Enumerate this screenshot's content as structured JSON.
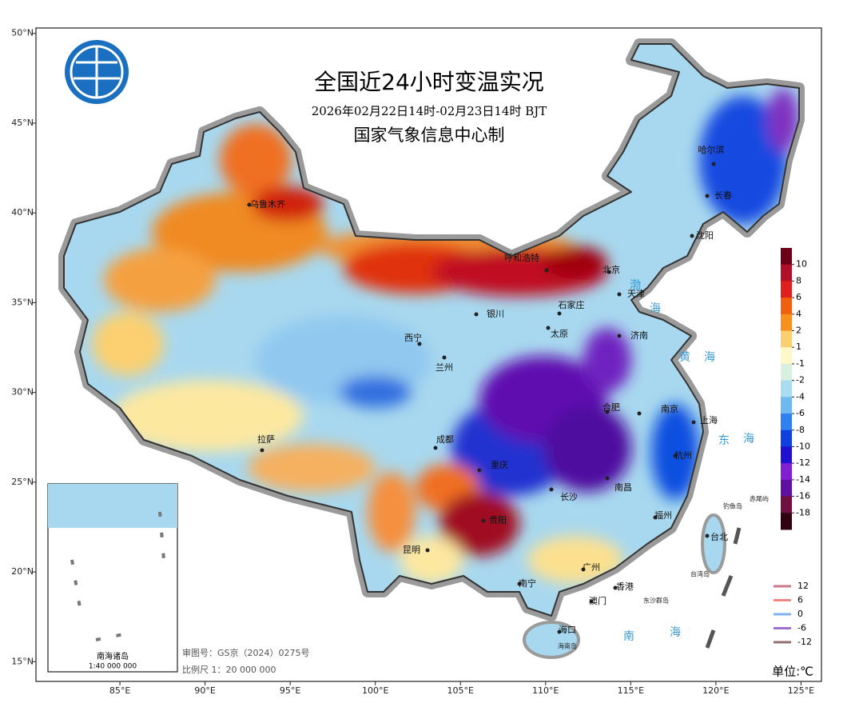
{
  "header": {
    "title": "全国近24小时变温实况",
    "subtitle": "2026年02月22日14时-02月23日14时 BJT",
    "producer": "国家气象信息中心制"
  },
  "axes": {
    "lonlim": [
      80.07,
      126.2
    ],
    "latlim": [
      13.9,
      50.3
    ],
    "lon_ticks": [
      {
        "value": 85,
        "label": "85°E"
      },
      {
        "value": 90,
        "label": "90°E"
      },
      {
        "value": 95,
        "label": "95°E"
      },
      {
        "value": 100,
        "label": "100°E"
      },
      {
        "value": 105,
        "label": "105°E"
      },
      {
        "value": 110,
        "label": "110°E"
      },
      {
        "value": 115,
        "label": "115°E"
      },
      {
        "value": 120,
        "label": "120°E"
      },
      {
        "value": 125,
        "label": "125°E"
      }
    ],
    "lat_ticks": [
      {
        "value": 50,
        "label": "50°N"
      },
      {
        "value": 45,
        "label": "45°N"
      },
      {
        "value": 40,
        "label": "40°N"
      },
      {
        "value": 35,
        "label": "35°N"
      },
      {
        "value": 30,
        "label": "30°N"
      },
      {
        "value": 25,
        "label": "25°N"
      },
      {
        "value": 20,
        "label": "20°N"
      },
      {
        "value": 15,
        "label": "15°N"
      }
    ]
  },
  "legend": {
    "levels": [
      10,
      8,
      6,
      4,
      2,
      1,
      -1,
      -2,
      -4,
      -6,
      -8,
      -10,
      -12,
      -14,
      -16,
      -18
    ],
    "colors": [
      "#6b0018",
      "#b0102a",
      "#e0201e",
      "#f06010",
      "#f89020",
      "#fcd070",
      "#fff8c8",
      "#d8f0e0",
      "#a8dcef",
      "#70b8f0",
      "#3080f0",
      "#1040e0",
      "#2010d0",
      "#8020d0",
      "#6010a0",
      "#701040",
      "#300010"
    ]
  },
  "contour_legend": {
    "values": [
      12,
      6,
      0,
      -6,
      -12
    ],
    "colors": [
      "#c8788a",
      "#f08880",
      "#80b0f0",
      "#a070d0",
      "#907070"
    ]
  },
  "cities": [
    "乌鲁木齐",
    "呼和浩特",
    "北京",
    "天津",
    "石家庄",
    "银川",
    "太原",
    "济南",
    "西宁",
    "兰州",
    "哈尔滨",
    "长春",
    "沈阳",
    "合肥",
    "南京",
    "上海",
    "杭州",
    "成都",
    "重庆",
    "长沙",
    "南昌",
    "福州",
    "台北",
    "拉萨",
    "贵阳",
    "昆明",
    "南宁",
    "广州",
    "香港",
    "澳门",
    "海口"
  ],
  "seas": [
    "渤",
    "海",
    "黄",
    "海",
    "东",
    "海",
    "南",
    "海"
  ],
  "islands": [
    "钓鱼岛",
    "赤尾屿",
    "台湾岛",
    "东沙群岛",
    "海南岛"
  ],
  "inset": {
    "title": "南海诸岛",
    "scale": "1:40 000 000"
  },
  "footer": {
    "approval": "审图号：GS京（2024）0275号",
    "scale": "比例尺 1：20 000 000",
    "unit": "单位:℃"
  }
}
